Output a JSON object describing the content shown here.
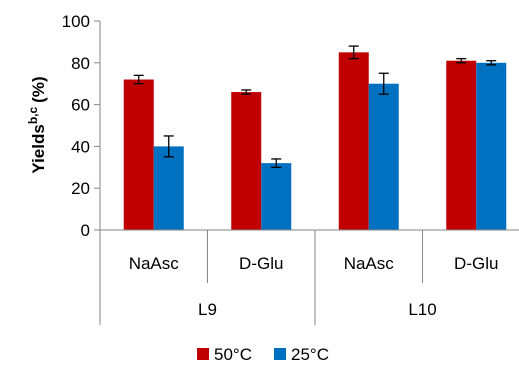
{
  "chart_data": {
    "type": "bar",
    "ylabel": "Yields",
    "ylabel_superscript": "b,c",
    "ylabel_suffix": "(%)",
    "ylim": [
      0,
      100
    ],
    "yticks": [
      "0",
      "20",
      "40",
      "60",
      "80",
      "100"
    ],
    "categories": [
      "NaAsc",
      "D-Glu",
      "NaAsc",
      "D-Glu"
    ],
    "groups": [
      {
        "label": "L9",
        "span": 2
      },
      {
        "label": "L10",
        "span": 2
      }
    ],
    "series": [
      {
        "name": "50°C",
        "color": "#C00000",
        "values": [
          72,
          66,
          85,
          81
        ],
        "errors": [
          2,
          1,
          3,
          1
        ]
      },
      {
        "name": "25°C",
        "color": "#0070C0",
        "values": [
          40,
          32,
          70,
          80
        ],
        "errors": [
          5,
          2,
          5,
          1
        ]
      }
    ],
    "legend_position": "bottom",
    "grid": false
  }
}
